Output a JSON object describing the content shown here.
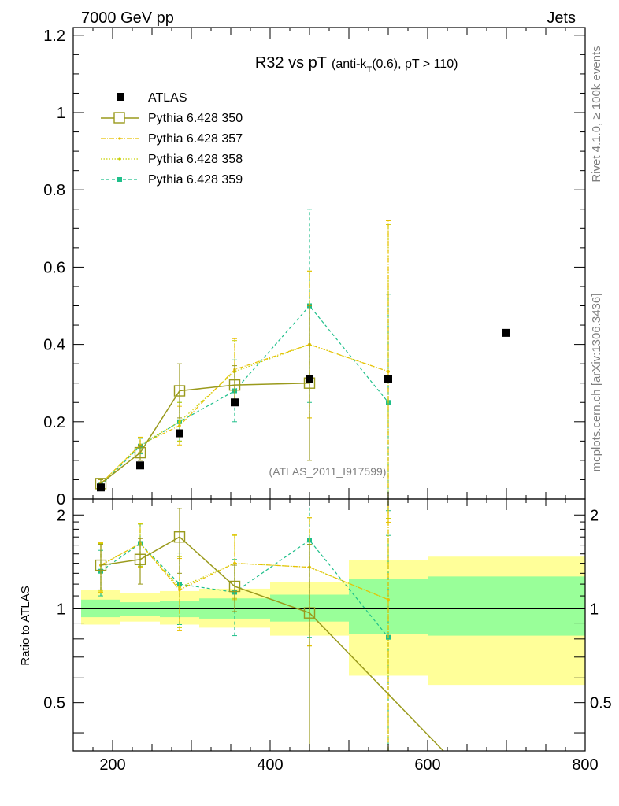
{
  "header": {
    "energy_label": "7000 GeV pp",
    "process_label": "Jets"
  },
  "side": {
    "rivet_label": "Rivet 4.1.0, ≥ 100k events",
    "mcplots_label": "mcplots.cern.ch [arXiv:1306.3436]"
  },
  "chart_data": [
    {
      "type": "scatter",
      "title": "R32 vs pT",
      "title_detail": "(anti-k",
      "title_sub": "T",
      "title_tail": "(0.6), pT > 110)",
      "analysis_label": "(ATLAS_2011_I917599)",
      "xlabel": "",
      "ylabel": "",
      "xlim": [
        150,
        800
      ],
      "ylim": [
        0,
        1.22
      ],
      "yticks": [
        0,
        0.2,
        0.4,
        0.6,
        0.8,
        1,
        1.2
      ],
      "ytick_labels": [
        "0",
        "0.2",
        "0.4",
        "0.6",
        "0.8",
        "1",
        "1.2"
      ],
      "legend": [
        "ATLAS",
        "Pythia 6.428 350",
        "Pythia 6.428 357",
        "Pythia 6.428 358",
        "Pythia 6.428 359"
      ],
      "data": {
        "name": "ATLAS",
        "x": [
          185,
          235,
          285,
          355,
          450,
          550,
          700
        ],
        "y": [
          0.03,
          0.087,
          0.17,
          0.25,
          0.31,
          0.31,
          0.43
        ],
        "color": "#000000"
      },
      "series": [
        {
          "name": "Pythia 6.428 350",
          "color": "#9a9a1c",
          "x": [
            185,
            235,
            285,
            355,
            450
          ],
          "y": [
            0.04,
            0.12,
            0.28,
            0.295,
            0.3
          ],
          "err": [
            0.01,
            0.02,
            0.07,
            0.05,
            0.2
          ]
        },
        {
          "name": "Pythia 6.428 357",
          "color": "#e8c000",
          "x": [
            185,
            235,
            285,
            355,
            450,
            550
          ],
          "y": [
            0.04,
            0.14,
            0.19,
            0.335,
            0.4,
            0.33
          ],
          "err": [
            0.01,
            0.02,
            0.05,
            0.08,
            0.19,
            0.39
          ]
        },
        {
          "name": "Pythia 6.428 358",
          "color": "#c8d000",
          "x": [
            185,
            235,
            285,
            355,
            450,
            550
          ],
          "y": [
            0.04,
            0.14,
            0.2,
            0.33,
            0.4,
            0.33
          ],
          "err": [
            0.01,
            0.02,
            0.05,
            0.08,
            0.19,
            0.38
          ]
        },
        {
          "name": "Pythia 6.428 359",
          "color": "#1fbf8a",
          "x": [
            185,
            235,
            285,
            355,
            450,
            550
          ],
          "y": [
            0.035,
            0.137,
            0.2,
            0.28,
            0.5,
            0.25
          ],
          "err": [
            0.008,
            0.02,
            0.05,
            0.08,
            0.25,
            0.28
          ]
        }
      ]
    },
    {
      "type": "scatter",
      "title": "",
      "ylabel": "Ratio to ATLAS",
      "xlim": [
        150,
        800
      ],
      "ylim": [
        0.35,
        2.25
      ],
      "yticks": [
        0.5,
        1,
        2
      ],
      "ytick_labels": [
        "0.5",
        "1",
        "2"
      ],
      "xticks": [
        200,
        400,
        600,
        800
      ],
      "xtick_labels": [
        "200",
        "400",
        "600",
        "800"
      ],
      "uncertainty_bands": [
        {
          "xlo": 160,
          "xhi": 210,
          "inner": [
            0.94,
            1.07
          ],
          "outer": [
            0.89,
            1.15
          ]
        },
        {
          "xlo": 210,
          "xhi": 260,
          "inner": [
            0.95,
            1.05
          ],
          "outer": [
            0.91,
            1.12
          ]
        },
        {
          "xlo": 260,
          "xhi": 310,
          "inner": [
            0.94,
            1.06
          ],
          "outer": [
            0.89,
            1.14
          ]
        },
        {
          "xlo": 310,
          "xhi": 400,
          "inner": [
            0.93,
            1.08
          ],
          "outer": [
            0.87,
            1.16
          ]
        },
        {
          "xlo": 400,
          "xhi": 500,
          "inner": [
            0.91,
            1.11
          ],
          "outer": [
            0.82,
            1.22
          ]
        },
        {
          "xlo": 500,
          "xhi": 600,
          "inner": [
            0.83,
            1.25
          ],
          "outer": [
            0.61,
            1.43
          ]
        },
        {
          "xlo": 600,
          "xhi": 800,
          "inner": [
            0.82,
            1.27
          ],
          "outer": [
            0.57,
            1.47
          ]
        }
      ],
      "series": [
        {
          "name": "Pythia 6.428 350",
          "color": "#9a9a1c",
          "x": [
            185,
            235,
            285,
            355,
            450,
            620
          ],
          "y": [
            1.38,
            1.44,
            1.7,
            1.18,
            0.97,
            0.35
          ],
          "err": [
            0.23,
            0.24,
            0.4,
            0.2,
            0.64,
            0
          ]
        },
        {
          "name": "Pythia 6.428 357",
          "color": "#e8c000",
          "x": [
            185,
            235,
            285,
            355,
            450,
            550
          ],
          "y": [
            1.38,
            1.62,
            1.15,
            1.4,
            1.36,
            1.07
          ],
          "err": [
            0.25,
            0.26,
            0.3,
            0.33,
            0.6,
            1.26
          ]
        },
        {
          "name": "Pythia 6.428 358",
          "color": "#c8d000",
          "x": [
            185,
            235,
            285,
            355,
            450,
            550
          ],
          "y": [
            1.38,
            1.62,
            1.17,
            1.4,
            1.36,
            1.07
          ],
          "err": [
            0.24,
            0.25,
            0.3,
            0.32,
            0.6,
            1.25
          ]
        },
        {
          "name": "Pythia 6.428 359",
          "color": "#1fbf8a",
          "x": [
            185,
            235,
            285,
            355,
            450,
            550
          ],
          "y": [
            1.32,
            1.62,
            1.2,
            1.13,
            1.66,
            0.81
          ],
          "err": [
            0.22,
            0.25,
            0.31,
            0.31,
            0.85,
            0.91
          ]
        }
      ]
    }
  ]
}
